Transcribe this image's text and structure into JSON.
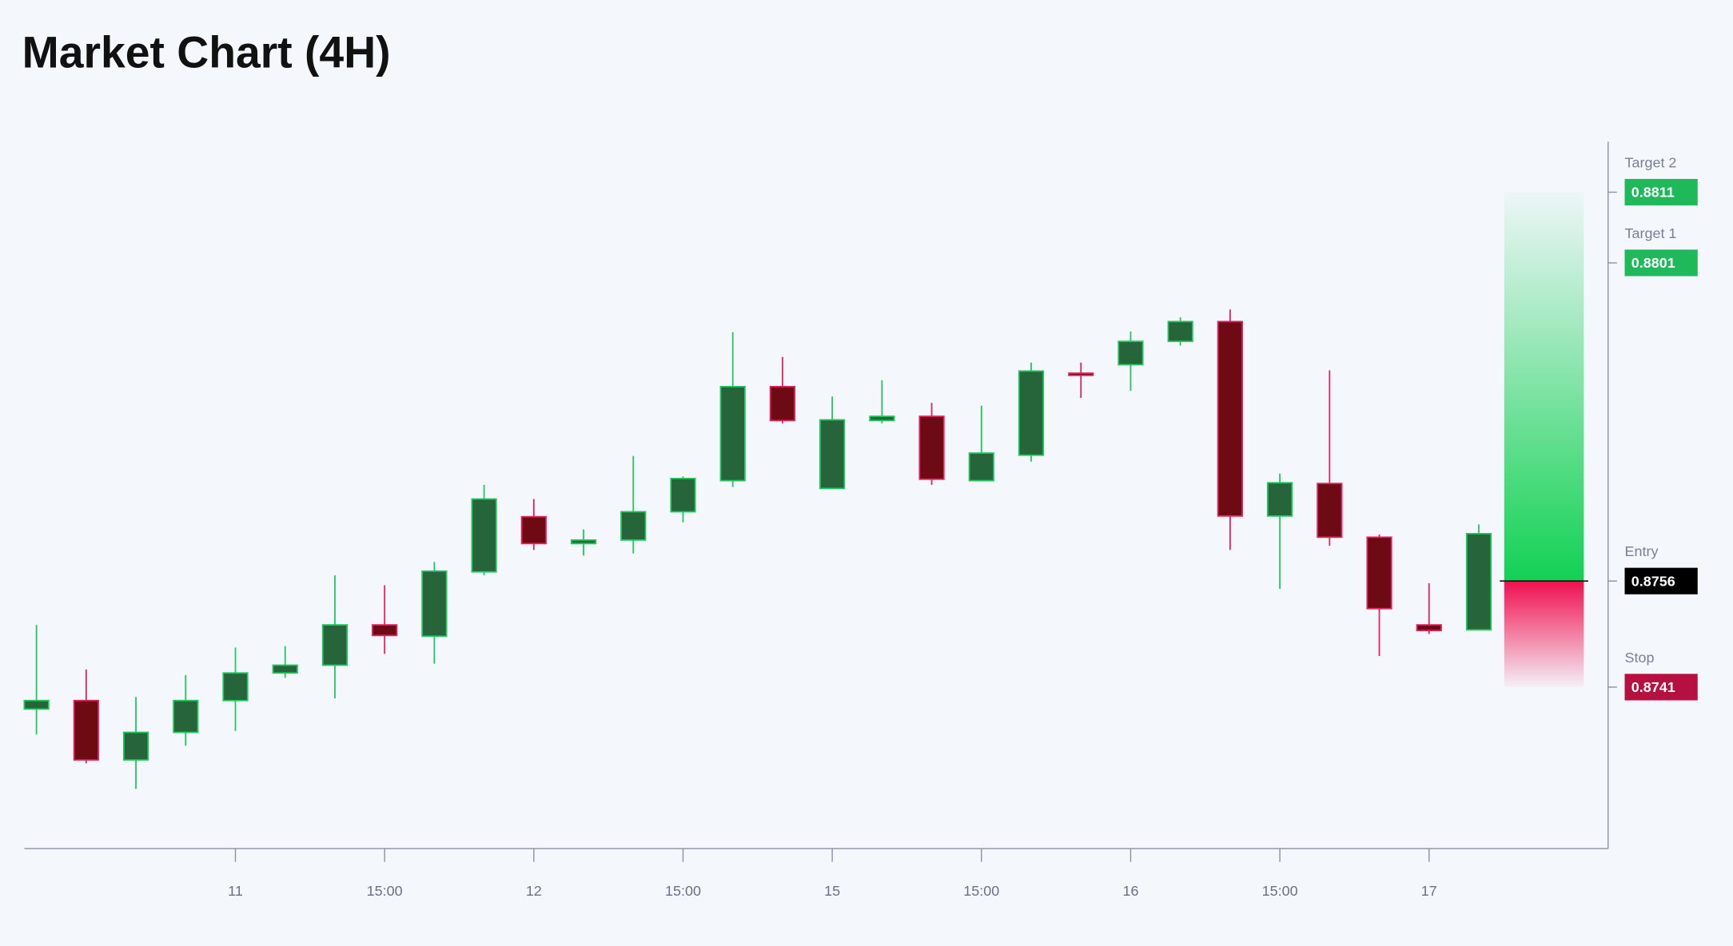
{
  "chart_data": {
    "type": "candlestick",
    "title": "Market Chart (4H)",
    "categories": [
      null,
      null,
      null,
      null,
      "11",
      null,
      null,
      "15:00",
      null,
      null,
      "12",
      null,
      null,
      "15:00",
      null,
      null,
      "15",
      null,
      null,
      "15:00",
      null,
      null,
      "16",
      null,
      null,
      "15:00",
      null,
      null,
      "17",
      null
    ],
    "open": [
      0.87379,
      0.87391,
      0.87307,
      0.87346,
      0.87391,
      0.8743,
      0.87441,
      0.87498,
      0.87482,
      0.87573,
      0.87651,
      0.87613,
      0.87618,
      0.87658,
      0.87702,
      0.87835,
      0.87691,
      0.87787,
      0.87793,
      0.87702,
      0.87738,
      0.87854,
      0.87866,
      0.87899,
      0.87927,
      0.87652,
      0.87698,
      0.87622,
      0.87498,
      0.87491
    ],
    "high": [
      0.87498,
      0.87435,
      0.87396,
      0.87427,
      0.87466,
      0.87468,
      0.87568,
      0.87554,
      0.87587,
      0.87696,
      0.87676,
      0.87633,
      0.87737,
      0.87708,
      0.87912,
      0.87877,
      0.87821,
      0.87844,
      0.87812,
      0.87808,
      0.87869,
      0.87869,
      0.87913,
      0.87933,
      0.87944,
      0.87712,
      0.87858,
      0.87626,
      0.87557,
      0.8764
    ],
    "low": [
      0.87343,
      0.87302,
      0.87266,
      0.87327,
      0.87348,
      0.87423,
      0.87394,
      0.87457,
      0.87443,
      0.87568,
      0.87604,
      0.87596,
      0.87599,
      0.87643,
      0.87693,
      0.87783,
      0.87691,
      0.87783,
      0.87696,
      0.87702,
      0.87729,
      0.87819,
      0.87829,
      0.87893,
      0.87604,
      0.87549,
      0.8761,
      0.87454,
      0.87485,
      0.87491
    ],
    "close": [
      0.87391,
      0.87307,
      0.87346,
      0.87391,
      0.8743,
      0.87441,
      0.87498,
      0.87483,
      0.87574,
      0.87676,
      0.87613,
      0.87618,
      0.87658,
      0.87705,
      0.87835,
      0.87787,
      0.87788,
      0.87793,
      0.87704,
      0.87741,
      0.87857,
      0.87852,
      0.87899,
      0.87927,
      0.87652,
      0.87699,
      0.87622,
      0.87521,
      0.8749,
      0.87627
    ],
    "up_color": "#26643a",
    "up_line_color": "#22c55e",
    "down_color": "#6e0a14",
    "down_line_color": "#e0245e",
    "ylim": [
      0.8718,
      0.8818
    ],
    "levels": [
      {
        "name": "Target 2",
        "value": 0.8811,
        "color": "#1fb85a"
      },
      {
        "name": "Target 1",
        "value": 0.8801,
        "color": "#1fb85a"
      },
      {
        "name": "Entry",
        "value": 0.8756,
        "color": "#000000"
      },
      {
        "name": "Stop",
        "value": 0.8741,
        "color": "#b5103f"
      }
    ]
  }
}
